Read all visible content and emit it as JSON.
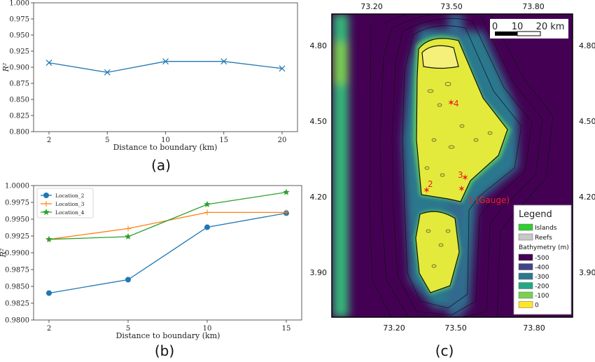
{
  "chart_data": [
    {
      "type": "line",
      "caption": "(a)",
      "x": [
        2,
        5,
        10,
        15,
        20
      ],
      "x_ticks": [
        "2",
        "5",
        "10",
        "15",
        "20"
      ],
      "series": [
        {
          "values": [
            0.907,
            0.892,
            0.909,
            0.909,
            0.898
          ],
          "color": "#1f77b4",
          "marker": "x"
        }
      ],
      "xlabel": "Distance to boundary (km)",
      "ylabel": "R²",
      "ylim": [
        0.8,
        1.0
      ],
      "y_ticks": [
        "0.800",
        "0.825",
        "0.850",
        "0.875",
        "0.900",
        "0.925",
        "0.950",
        "0.975",
        "1.000"
      ],
      "grid": false
    },
    {
      "type": "line",
      "caption": "(b)",
      "x": [
        2,
        5,
        10,
        15
      ],
      "x_ticks": [
        "2",
        "5",
        "10",
        "15"
      ],
      "series": [
        {
          "name": "Location_2",
          "values": [
            0.984,
            0.986,
            0.9938,
            0.9959
          ],
          "color": "#1f77b4",
          "marker": "o"
        },
        {
          "name": "Location_3",
          "values": [
            0.992,
            0.9936,
            0.996,
            0.996
          ],
          "color": "#ff7f0e",
          "marker": "+"
        },
        {
          "name": "Location_4",
          "values": [
            0.992,
            0.9924,
            0.9972,
            0.999
          ],
          "color": "#2ca02c",
          "marker": "*"
        }
      ],
      "xlabel": "Distance to boundary (km)",
      "ylabel": "R²",
      "ylim": [
        0.98,
        1.0
      ],
      "y_ticks": [
        "0.9800",
        "0.9825",
        "0.9850",
        "0.9875",
        "0.9900",
        "0.9925",
        "0.9950",
        "0.9975",
        "1.0000"
      ],
      "legend": "top-left",
      "grid": false
    }
  ],
  "map": {
    "caption": "(c)",
    "lon_ticks": [
      "73.20",
      "73.50",
      "73.80"
    ],
    "lat_ticks": [
      "4.80",
      "4.50",
      "4.20",
      "3.90"
    ],
    "scalebar_labels": [
      "0",
      "10",
      "20 km"
    ],
    "gauges": [
      {
        "label": "1 (Gauge)"
      },
      {
        "label": "2"
      },
      {
        "label": "3"
      },
      {
        "label": "4"
      }
    ],
    "legend": {
      "title": "Legend",
      "items": [
        {
          "label": "Islands",
          "color": "#33cc33"
        },
        {
          "label": "Reefs",
          "color": "#c8c8c8"
        }
      ],
      "bathy_title": "Bathymetry (m)",
      "bathy": [
        {
          "label": "-500",
          "color": "#440154"
        },
        {
          "label": "-400",
          "color": "#414487"
        },
        {
          "label": "-300",
          "color": "#2a788e"
        },
        {
          "label": "-200",
          "color": "#22a884"
        },
        {
          "label": "-100",
          "color": "#7ad151"
        },
        {
          "label": "0",
          "color": "#fde725"
        }
      ]
    }
  }
}
